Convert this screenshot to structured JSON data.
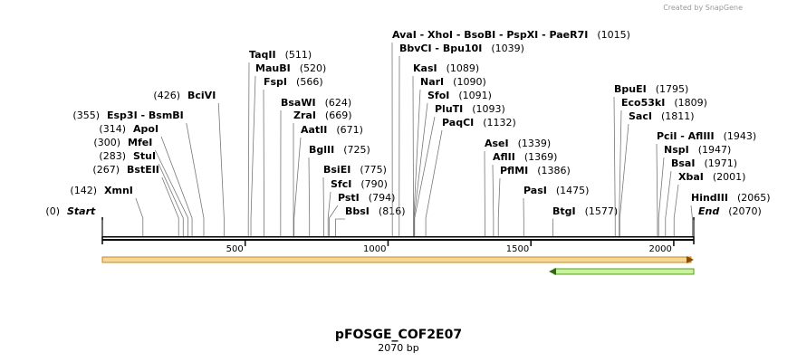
{
  "header": {
    "credit": "Created by SnapGene"
  },
  "map": {
    "title": "pFOSGE_COF2E07",
    "subtitle": "2070 bp",
    "length": 2070,
    "ticks": [
      500,
      1000,
      1500,
      2000
    ],
    "sites": [
      {
        "name": "Start",
        "site": {
          "value": 0,
          "label": "(0)"
        }
      },
      {
        "name": "XmnI",
        "site": {
          "value": 142,
          "label": "(142)"
        }
      },
      {
        "name": "BstEII",
        "site": {
          "value": 267,
          "label": "(267)"
        }
      },
      {
        "name": "StuI",
        "site": {
          "value": 283,
          "label": "(283)"
        }
      },
      {
        "name": "MfeI",
        "site": {
          "value": 300,
          "label": "(300)"
        }
      },
      {
        "name": "ApoI",
        "site": {
          "value": 314,
          "label": "(314)"
        }
      },
      {
        "name": "Esp3I - BsmBI",
        "site": {
          "value": 355,
          "label": "(355)"
        }
      },
      {
        "name": "BciVI",
        "site": {
          "value": 426,
          "label": "(426)"
        }
      },
      {
        "name": "TaqII",
        "site": {
          "value": 511,
          "label": "(511)"
        }
      },
      {
        "name": "MauBI",
        "site": {
          "value": 520,
          "label": "(520)"
        }
      },
      {
        "name": "FspI",
        "site": {
          "value": 566,
          "label": "(566)"
        }
      },
      {
        "name": "BsaWI",
        "site": {
          "value": 624,
          "label": "(624)"
        }
      },
      {
        "name": "ZraI",
        "site": {
          "value": 669,
          "label": "(669)"
        }
      },
      {
        "name": "AatII",
        "site": {
          "value": 671,
          "label": "(671)"
        }
      },
      {
        "name": "BglII",
        "site": {
          "value": 725,
          "label": "(725)"
        }
      },
      {
        "name": "BsiEI",
        "site": {
          "value": 775,
          "label": "(775)"
        }
      },
      {
        "name": "SfcI",
        "site": {
          "value": 790,
          "label": "(790)"
        }
      },
      {
        "name": "PstI",
        "site": {
          "value": 794,
          "label": "(794)"
        }
      },
      {
        "name": "BbsI",
        "site": {
          "value": 816,
          "label": "(816)"
        }
      },
      {
        "name": "AvaI  - XhoI  - BsoBI  - PspXI  - PaeR7I",
        "site": {
          "value": 1015,
          "label": "(1015)"
        }
      },
      {
        "name": "BbvCI - Bpu10I",
        "site": {
          "value": 1039,
          "label": "(1039)"
        }
      },
      {
        "name": "KasI",
        "site": {
          "value": 1089,
          "label": "(1089)"
        }
      },
      {
        "name": "NarI",
        "site": {
          "value": 1090,
          "label": "(1090)"
        }
      },
      {
        "name": "SfoI",
        "site": {
          "value": 1091,
          "label": "(1091)"
        }
      },
      {
        "name": "PluTI",
        "site": {
          "value": 1093,
          "label": "(1093)"
        }
      },
      {
        "name": "PaqCI",
        "site": {
          "value": 1132,
          "label": "(1132)"
        }
      },
      {
        "name": "AseI",
        "site": {
          "value": 1339,
          "label": "(1339)"
        }
      },
      {
        "name": "AflII",
        "site": {
          "value": 1369,
          "label": "(1369)"
        }
      },
      {
        "name": "PflMI",
        "site": {
          "value": 1386,
          "label": "(1386)"
        }
      },
      {
        "name": "PasI",
        "site": {
          "value": 1475,
          "label": "(1475)"
        }
      },
      {
        "name": "BtgI",
        "site": {
          "value": 1577,
          "label": "(1577)"
        }
      },
      {
        "name": "BpuEI",
        "site": {
          "value": 1795,
          "label": "(1795)"
        }
      },
      {
        "name": "Eco53kI",
        "site": {
          "value": 1809,
          "label": "(1809)"
        }
      },
      {
        "name": "SacI",
        "site": {
          "value": 1811,
          "label": "(1811)"
        }
      },
      {
        "name": "PciI - AflIII",
        "site": {
          "value": 1943,
          "label": "(1943)"
        }
      },
      {
        "name": "NspI",
        "site": {
          "value": 1947,
          "label": "(1947)"
        }
      },
      {
        "name": "BsaI",
        "site": {
          "value": 1971,
          "label": "(1971)"
        }
      },
      {
        "name": "XbaI",
        "site": {
          "value": 2001,
          "label": "(2001)"
        }
      },
      {
        "name": "HindIII",
        "site": {
          "value": 2065,
          "label": "(2065)"
        }
      },
      {
        "name": "End",
        "site": {
          "value": 2070,
          "label": "(2070)"
        }
      }
    ]
  }
}
